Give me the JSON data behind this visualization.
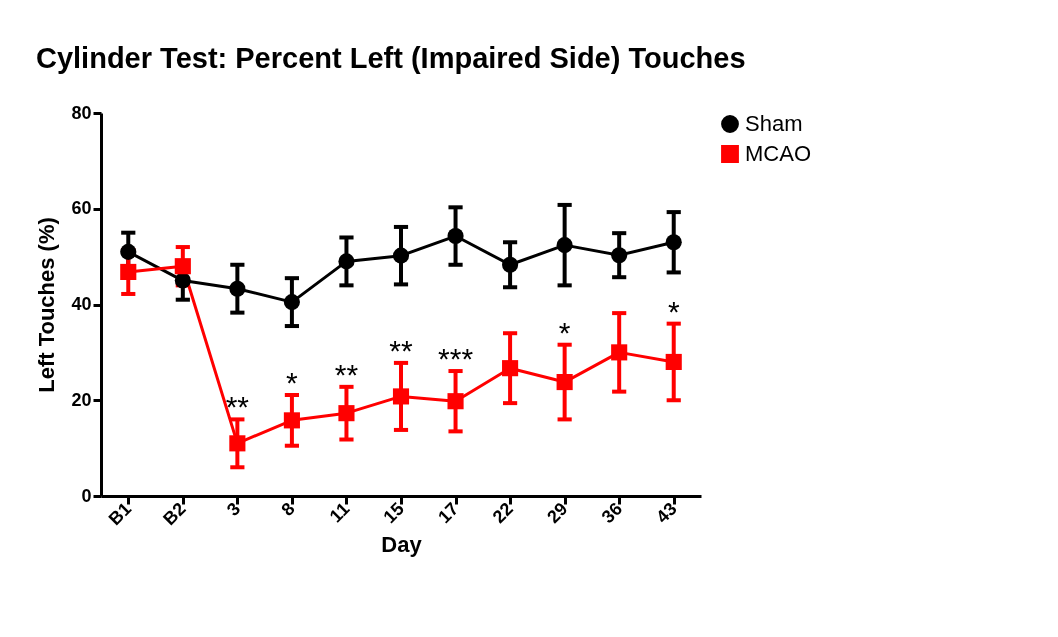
{
  "chart_data": {
    "type": "line",
    "title": "Cylinder Test: Percent Left (Impaired Side) Touches",
    "xlabel": "Day",
    "ylabel": "Left Touches (%)",
    "categories": [
      "B1",
      "B2",
      "3",
      "8",
      "11",
      "15",
      "17",
      "22",
      "29",
      "36",
      "43"
    ],
    "series": [
      {
        "name": "Sham",
        "color": "#000000",
        "marker": "circle",
        "values": [
          51,
          45,
          43.3,
          40.5,
          49,
          50.2,
          54.3,
          48.3,
          52.4,
          50.3,
          53
        ],
        "errors": [
          4,
          4,
          5,
          5,
          5,
          6,
          6,
          4.7,
          8.4,
          4.6,
          6.3
        ]
      },
      {
        "name": "MCAO",
        "color": "#ff0000",
        "marker": "square",
        "values": [
          46.8,
          48,
          11,
          15.8,
          17.3,
          20.8,
          19.8,
          26.7,
          23.8,
          30,
          28
        ],
        "errors": [
          4.6,
          4,
          5,
          5.3,
          5.5,
          7,
          6.3,
          7.3,
          7.8,
          8.2,
          8
        ]
      }
    ],
    "annotations": [
      {
        "text": "**",
        "x": "3",
        "y": 11
      },
      {
        "text": "*",
        "x": "8",
        "y": 15.8
      },
      {
        "text": "**",
        "x": "11",
        "y": 17.3
      },
      {
        "text": "**",
        "x": "15",
        "y": 20.8
      },
      {
        "text": "***",
        "x": "17",
        "y": 19.8
      },
      {
        "text": "*",
        "x": "29",
        "y": 23.8
      },
      {
        "text": "*",
        "x": "43",
        "y": 28
      }
    ],
    "ylim": [
      0,
      80
    ],
    "yticks": [
      0,
      20,
      40,
      60,
      80
    ],
    "grid": false,
    "legend": "right",
    "line_style": "solid"
  }
}
